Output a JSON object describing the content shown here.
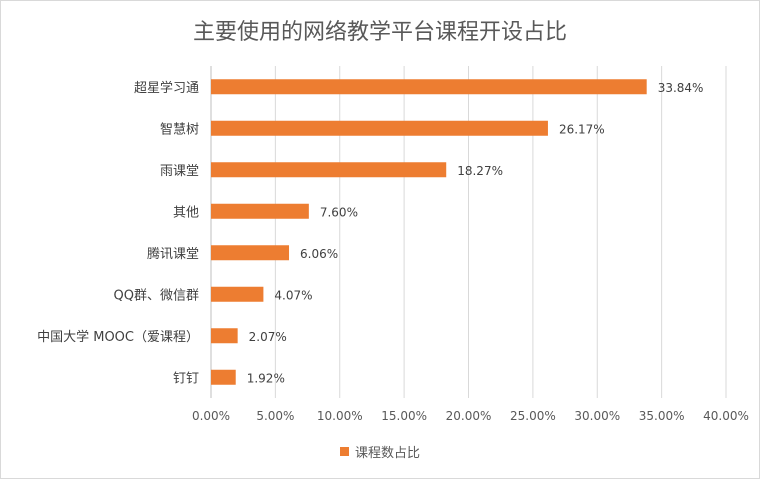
{
  "chart_data": {
    "type": "bar",
    "orientation": "horizontal",
    "title": "主要使用的网络教学平台课程开设占比",
    "categories": [
      "超星学习通",
      "智慧树",
      "雨课堂",
      "其他",
      "腾讯课堂",
      "QQ群、微信群",
      "中国大学 MOOC（爱课程）",
      "钉钉"
    ],
    "series": [
      {
        "name": "课程数占比",
        "values": [
          33.84,
          26.17,
          18.27,
          7.6,
          6.06,
          4.07,
          2.07,
          1.92
        ],
        "labels": [
          "33.84%",
          "26.17%",
          "18.27%",
          "7.60%",
          "6.06%",
          "4.07%",
          "2.07%",
          "1.92%"
        ]
      }
    ],
    "xlim": [
      0,
      40
    ],
    "xticks": [
      "0.00%",
      "5.00%",
      "10.00%",
      "15.00%",
      "20.00%",
      "25.00%",
      "30.00%",
      "35.00%",
      "40.00%"
    ],
    "grid": true,
    "legend_position": "bottom",
    "bar_color": "#ED7D31"
  }
}
